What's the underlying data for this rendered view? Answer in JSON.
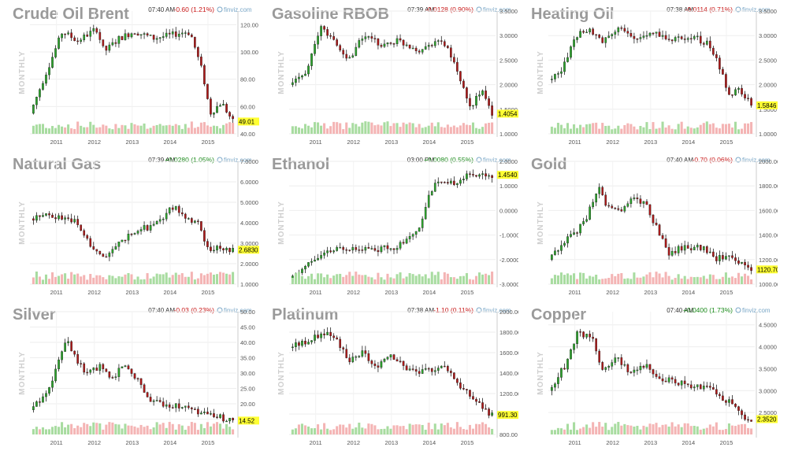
{
  "source_label": "finviz.com",
  "period_label": "MONTHLY",
  "colors": {
    "up": "#2aa52a",
    "down": "#b01818",
    "vol_up": "#a8dca0",
    "vol_down": "#f4b4b4",
    "positive": "#1a8a1a",
    "negative": "#c81818",
    "last_bg": "#ffff33"
  },
  "chart_data": [
    {
      "type": "candlestick",
      "title": "Crude Oil Brent",
      "time": "07:40 AM",
      "change": "-0.60 (1.21%)",
      "direction": "down",
      "last": "49.01",
      "x_ticks": [
        "2011",
        "2012",
        "2013",
        "2014",
        "2015"
      ],
      "y_ticks": [
        "40.00",
        "60.00",
        "80.00",
        "100.00",
        "120.00"
      ],
      "ylim": [
        40,
        130
      ],
      "x_range": [
        2010.3,
        2015.75
      ],
      "x_tick_values": [
        2011,
        2012,
        2013,
        2014,
        2015
      ],
      "y_tick_values": [
        40,
        60,
        80,
        100,
        120
      ],
      "path": [
        [
          2010.35,
          55
        ],
        [
          2010.7,
          80
        ],
        [
          2011.2,
          115
        ],
        [
          2011.6,
          108
        ],
        [
          2012.1,
          117
        ],
        [
          2012.3,
          100
        ],
        [
          2012.7,
          110
        ],
        [
          2013.1,
          115
        ],
        [
          2013.6,
          110
        ],
        [
          2014.0,
          112
        ],
        [
          2014.5,
          115
        ],
        [
          2014.6,
          112
        ],
        [
          2014.9,
          85
        ],
        [
          2015.1,
          55
        ],
        [
          2015.4,
          63
        ],
        [
          2015.7,
          49
        ]
      ]
    },
    {
      "type": "candlestick",
      "title": "Gasoline RBOB",
      "time": "07:39 AM",
      "change": "-0.0128 (0.90%)",
      "direction": "down",
      "last": "1.4054",
      "x_ticks": [
        "2011",
        "2012",
        "2013",
        "2014",
        "2015"
      ],
      "y_ticks": [
        "1.0000",
        "1.5000",
        "2.0000",
        "2.5000",
        "3.0000",
        "3.5000"
      ],
      "ylim": [
        1.0,
        3.5
      ],
      "x_range": [
        2010.3,
        2015.75
      ],
      "x_tick_values": [
        2011,
        2012,
        2013,
        2014,
        2015
      ],
      "y_tick_values": [
        1.0,
        1.5,
        2.0,
        2.5,
        3.0,
        3.5
      ],
      "path": [
        [
          2010.35,
          2.0
        ],
        [
          2010.8,
          2.3
        ],
        [
          2011.2,
          3.2
        ],
        [
          2011.6,
          2.8
        ],
        [
          2011.9,
          2.5
        ],
        [
          2012.3,
          3.0
        ],
        [
          2012.8,
          2.8
        ],
        [
          2013.2,
          2.9
        ],
        [
          2013.8,
          2.7
        ],
        [
          2014.2,
          2.9
        ],
        [
          2014.5,
          2.8
        ],
        [
          2014.9,
          2.0
        ],
        [
          2015.1,
          1.5
        ],
        [
          2015.4,
          1.9
        ],
        [
          2015.7,
          1.41
        ]
      ]
    },
    {
      "type": "candlestick",
      "title": "Heating Oil",
      "time": "07:38 AM",
      "change": "-0.0114 (0.71%)",
      "direction": "down",
      "last": "1.5846",
      "x_ticks": [
        "2011",
        "2012",
        "2013",
        "2014",
        "2015"
      ],
      "y_ticks": [
        "1.0000",
        "1.5000",
        "2.0000",
        "2.5000",
        "3.0000",
        "3.5000"
      ],
      "ylim": [
        1.0,
        3.5
      ],
      "x_range": [
        2010.3,
        2015.75
      ],
      "x_tick_values": [
        2011,
        2012,
        2013,
        2014,
        2015
      ],
      "y_tick_values": [
        1.0,
        1.5,
        2.0,
        2.5,
        3.0,
        3.5
      ],
      "path": [
        [
          2010.35,
          2.1
        ],
        [
          2010.7,
          2.3
        ],
        [
          2011.1,
          3.0
        ],
        [
          2011.4,
          3.1
        ],
        [
          2011.8,
          2.9
        ],
        [
          2012.2,
          3.2
        ],
        [
          2012.6,
          2.9
        ],
        [
          2013.1,
          3.1
        ],
        [
          2013.6,
          2.9
        ],
        [
          2014.1,
          3.0
        ],
        [
          2014.6,
          2.8
        ],
        [
          2014.9,
          2.3
        ],
        [
          2015.1,
          1.8
        ],
        [
          2015.4,
          1.9
        ],
        [
          2015.7,
          1.58
        ]
      ]
    },
    {
      "type": "candlestick",
      "title": "Natural Gas",
      "time": "07:39 AM",
      "change": "+0.0280 (1.05%)",
      "direction": "up",
      "last": "2.6830",
      "x_ticks": [
        "2011",
        "2012",
        "2013",
        "2014",
        "2015"
      ],
      "y_ticks": [
        "1.0000",
        "2.0000",
        "3.0000",
        "4.0000",
        "5.0000",
        "6.0000",
        "7.0000"
      ],
      "ylim": [
        1.0,
        7.0
      ],
      "x_range": [
        2010.3,
        2015.75
      ],
      "x_tick_values": [
        2011,
        2012,
        2013,
        2014,
        2015
      ],
      "y_tick_values": [
        1,
        2,
        3,
        4,
        5,
        6,
        7
      ],
      "path": [
        [
          2010.35,
          4.2
        ],
        [
          2010.7,
          4.4
        ],
        [
          2011.0,
          4.3
        ],
        [
          2011.5,
          4.1
        ],
        [
          2011.9,
          3.0
        ],
        [
          2012.3,
          2.2
        ],
        [
          2012.7,
          3.0
        ],
        [
          2013.1,
          3.6
        ],
        [
          2013.5,
          3.8
        ],
        [
          2013.9,
          4.3
        ],
        [
          2014.1,
          4.8
        ],
        [
          2014.4,
          4.4
        ],
        [
          2014.8,
          3.9
        ],
        [
          2015.0,
          2.8
        ],
        [
          2015.4,
          2.7
        ],
        [
          2015.7,
          2.68
        ]
      ]
    },
    {
      "type": "candlestick",
      "title": "Ethanol",
      "time": "03:00 PM",
      "change": "+0.0080 (0.55%)",
      "direction": "up",
      "last": "1.4540",
      "x_ticks": [
        "2011",
        "2012",
        "2013",
        "2014",
        "2015"
      ],
      "y_ticks": [
        "-3.0000",
        "-2.0000",
        "-1.0000",
        "0.0000",
        "1.0000",
        "2.0000"
      ],
      "ylim": [
        -3.0,
        2.0
      ],
      "x_range": [
        2010.3,
        2015.75
      ],
      "x_tick_values": [
        2011,
        2012,
        2013,
        2014,
        2015
      ],
      "y_tick_values": [
        -3,
        -2,
        -1,
        0,
        1,
        2
      ],
      "path": [
        [
          2010.35,
          -2.9
        ],
        [
          2010.6,
          -2.5
        ],
        [
          2011.0,
          -2.0
        ],
        [
          2011.4,
          -1.7
        ],
        [
          2011.8,
          -1.5
        ],
        [
          2012.2,
          -1.5
        ],
        [
          2012.6,
          -1.6
        ],
        [
          2013.1,
          -1.5
        ],
        [
          2013.5,
          -1.2
        ],
        [
          2013.8,
          -0.6
        ],
        [
          2014.0,
          0.5
        ],
        [
          2014.2,
          1.2
        ],
        [
          2014.5,
          1.0
        ],
        [
          2014.9,
          1.3
        ],
        [
          2015.2,
          1.5
        ],
        [
          2015.7,
          1.45
        ]
      ]
    },
    {
      "type": "candlestick",
      "title": "Gold",
      "time": "07:40 AM",
      "change": "-0.70 (0.06%)",
      "direction": "down",
      "last": "1120.70",
      "x_ticks": [
        "2011",
        "2012",
        "2013",
        "2014",
        "2015"
      ],
      "y_ticks": [
        "1000.00",
        "1200.00",
        "1400.00",
        "1600.00",
        "1800.00",
        "2000.00"
      ],
      "ylim": [
        1000,
        2000
      ],
      "x_range": [
        2010.3,
        2015.75
      ],
      "x_tick_values": [
        2011,
        2012,
        2013,
        2014,
        2015
      ],
      "y_tick_values": [
        1000,
        1200,
        1400,
        1600,
        1800,
        2000
      ],
      "path": [
        [
          2010.35,
          1200
        ],
        [
          2010.9,
          1380
        ],
        [
          2011.3,
          1500
        ],
        [
          2011.65,
          1800
        ],
        [
          2011.9,
          1620
        ],
        [
          2012.3,
          1600
        ],
        [
          2012.6,
          1720
        ],
        [
          2012.9,
          1650
        ],
        [
          2013.3,
          1400
        ],
        [
          2013.5,
          1250
        ],
        [
          2013.9,
          1300
        ],
        [
          2014.4,
          1300
        ],
        [
          2014.8,
          1200
        ],
        [
          2015.1,
          1250
        ],
        [
          2015.5,
          1150
        ],
        [
          2015.7,
          1120
        ]
      ]
    },
    {
      "type": "candlestick",
      "title": "Silver",
      "time": "07:40 AM",
      "change": "-0.03 (0.23%)",
      "direction": "down",
      "last": "14.52",
      "x_ticks": [
        "2011",
        "2012",
        "2013",
        "2014",
        "2015"
      ],
      "y_ticks": [
        "15.00",
        "20.00",
        "25.00",
        "30.00",
        "35.00",
        "40.00",
        "45.00",
        "50.00"
      ],
      "ylim": [
        10,
        50
      ],
      "x_range": [
        2010.3,
        2015.75
      ],
      "x_tick_values": [
        2011,
        2012,
        2013,
        2014,
        2015
      ],
      "y_tick_values": [
        15,
        20,
        25,
        30,
        35,
        40,
        45,
        50
      ],
      "path": [
        [
          2010.35,
          18
        ],
        [
          2010.7,
          22
        ],
        [
          2011.0,
          30
        ],
        [
          2011.3,
          42
        ],
        [
          2011.55,
          35
        ],
        [
          2011.8,
          30
        ],
        [
          2012.2,
          32
        ],
        [
          2012.5,
          28
        ],
        [
          2012.8,
          33
        ],
        [
          2013.2,
          28
        ],
        [
          2013.5,
          21
        ],
        [
          2013.9,
          20
        ],
        [
          2014.4,
          19
        ],
        [
          2014.8,
          17
        ],
        [
          2015.2,
          16
        ],
        [
          2015.7,
          14.52
        ]
      ]
    },
    {
      "type": "candlestick",
      "title": "Platinum",
      "time": "07:38 AM",
      "change": "-1.10 (0.11%)",
      "direction": "down",
      "last": "991.30",
      "x_ticks": [
        "2011",
        "2012",
        "2013",
        "2014",
        "2015"
      ],
      "y_ticks": [
        "800.00",
        "1000.00",
        "1200.00",
        "1400.00",
        "1600.00",
        "1800.00",
        "2000.00"
      ],
      "ylim": [
        800,
        2000
      ],
      "x_range": [
        2010.3,
        2015.75
      ],
      "x_tick_values": [
        2011,
        2012,
        2013,
        2014,
        2015
      ],
      "y_tick_values": [
        800,
        1000,
        1200,
        1400,
        1600,
        1800,
        2000
      ],
      "path": [
        [
          2010.35,
          1650
        ],
        [
          2010.9,
          1720
        ],
        [
          2011.3,
          1800
        ],
        [
          2011.6,
          1750
        ],
        [
          2011.9,
          1500
        ],
        [
          2012.3,
          1600
        ],
        [
          2012.6,
          1450
        ],
        [
          2013.0,
          1600
        ],
        [
          2013.4,
          1450
        ],
        [
          2013.8,
          1400
        ],
        [
          2014.2,
          1450
        ],
        [
          2014.5,
          1460
        ],
        [
          2014.9,
          1250
        ],
        [
          2015.2,
          1150
        ],
        [
          2015.5,
          1050
        ],
        [
          2015.7,
          991
        ]
      ]
    },
    {
      "type": "candlestick",
      "title": "Copper",
      "time": "07:40 AM",
      "change": "+0.0400 (1.73%)",
      "direction": "up",
      "last": "2.3520",
      "x_ticks": [
        "2011",
        "2012",
        "2013",
        "2014",
        "2015"
      ],
      "y_ticks": [
        "2.5000",
        "3.0000",
        "3.5000",
        "4.0000",
        "4.5000"
      ],
      "ylim": [
        2.0,
        4.8
      ],
      "x_range": [
        2010.3,
        2015.75
      ],
      "x_tick_values": [
        2011,
        2012,
        2013,
        2014,
        2015
      ],
      "y_tick_values": [
        2.5,
        3.0,
        3.5,
        4.0,
        4.5
      ],
      "path": [
        [
          2010.35,
          3.0
        ],
        [
          2010.8,
          3.6
        ],
        [
          2011.1,
          4.3
        ],
        [
          2011.5,
          4.2
        ],
        [
          2011.8,
          3.4
        ],
        [
          2012.1,
          3.8
        ],
        [
          2012.5,
          3.4
        ],
        [
          2012.9,
          3.6
        ],
        [
          2013.3,
          3.3
        ],
        [
          2013.7,
          3.2
        ],
        [
          2014.2,
          3.1
        ],
        [
          2014.6,
          3.1
        ],
        [
          2014.9,
          2.8
        ],
        [
          2015.2,
          2.7
        ],
        [
          2015.5,
          2.4
        ],
        [
          2015.7,
          2.35
        ]
      ]
    }
  ]
}
